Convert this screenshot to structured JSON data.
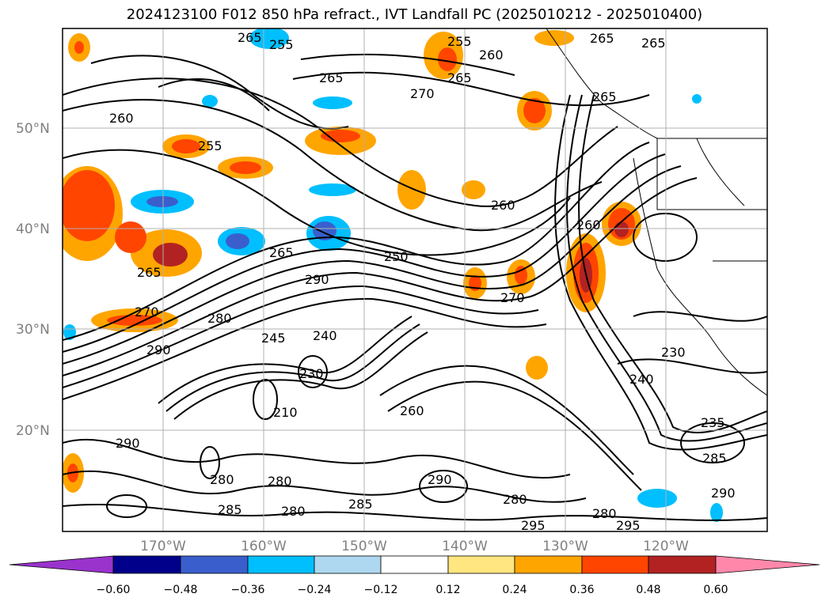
{
  "title": "2024123100 F012 850 hPa refract., IVT Landfall PC (2025010212 - 2025010400)",
  "map": {
    "lat_labels": [
      "50°N",
      "40°N",
      "30°N",
      "20°N"
    ],
    "lon_labels": [
      "170°W",
      "160°W",
      "150°W",
      "140°W",
      "130°W",
      "120°W"
    ],
    "contour_labels": [
      "265",
      "255",
      "265",
      "260",
      "265",
      "265",
      "255",
      "270",
      "265",
      "260",
      "255",
      "265",
      "260",
      "260",
      "290",
      "265",
      "265",
      "270",
      "290",
      "280",
      "245",
      "250",
      "240",
      "230",
      "210",
      "260",
      "280",
      "290",
      "285",
      "280",
      "280",
      "285",
      "295",
      "290",
      "295",
      "280",
      "280",
      "270",
      "240",
      "230",
      "235",
      "285",
      "290"
    ],
    "colors": {
      "land": "#ffffff",
      "ocean": "#ffffff",
      "grid": "#b0b0b0",
      "coast": "#000000"
    }
  },
  "colorbar": {
    "ticks": [
      "−0.60",
      "−0.48",
      "−0.36",
      "−0.24",
      "−0.12",
      "0.12",
      "0.24",
      "0.36",
      "0.48",
      "0.60"
    ],
    "colors": [
      "#9933cc",
      "#00008b",
      "#3a5fcd",
      "#00bfff",
      "#add8f0",
      "#ffffff",
      "#ffe680",
      "#ffa500",
      "#ff4500",
      "#b22222",
      "#ff88aa"
    ]
  }
}
